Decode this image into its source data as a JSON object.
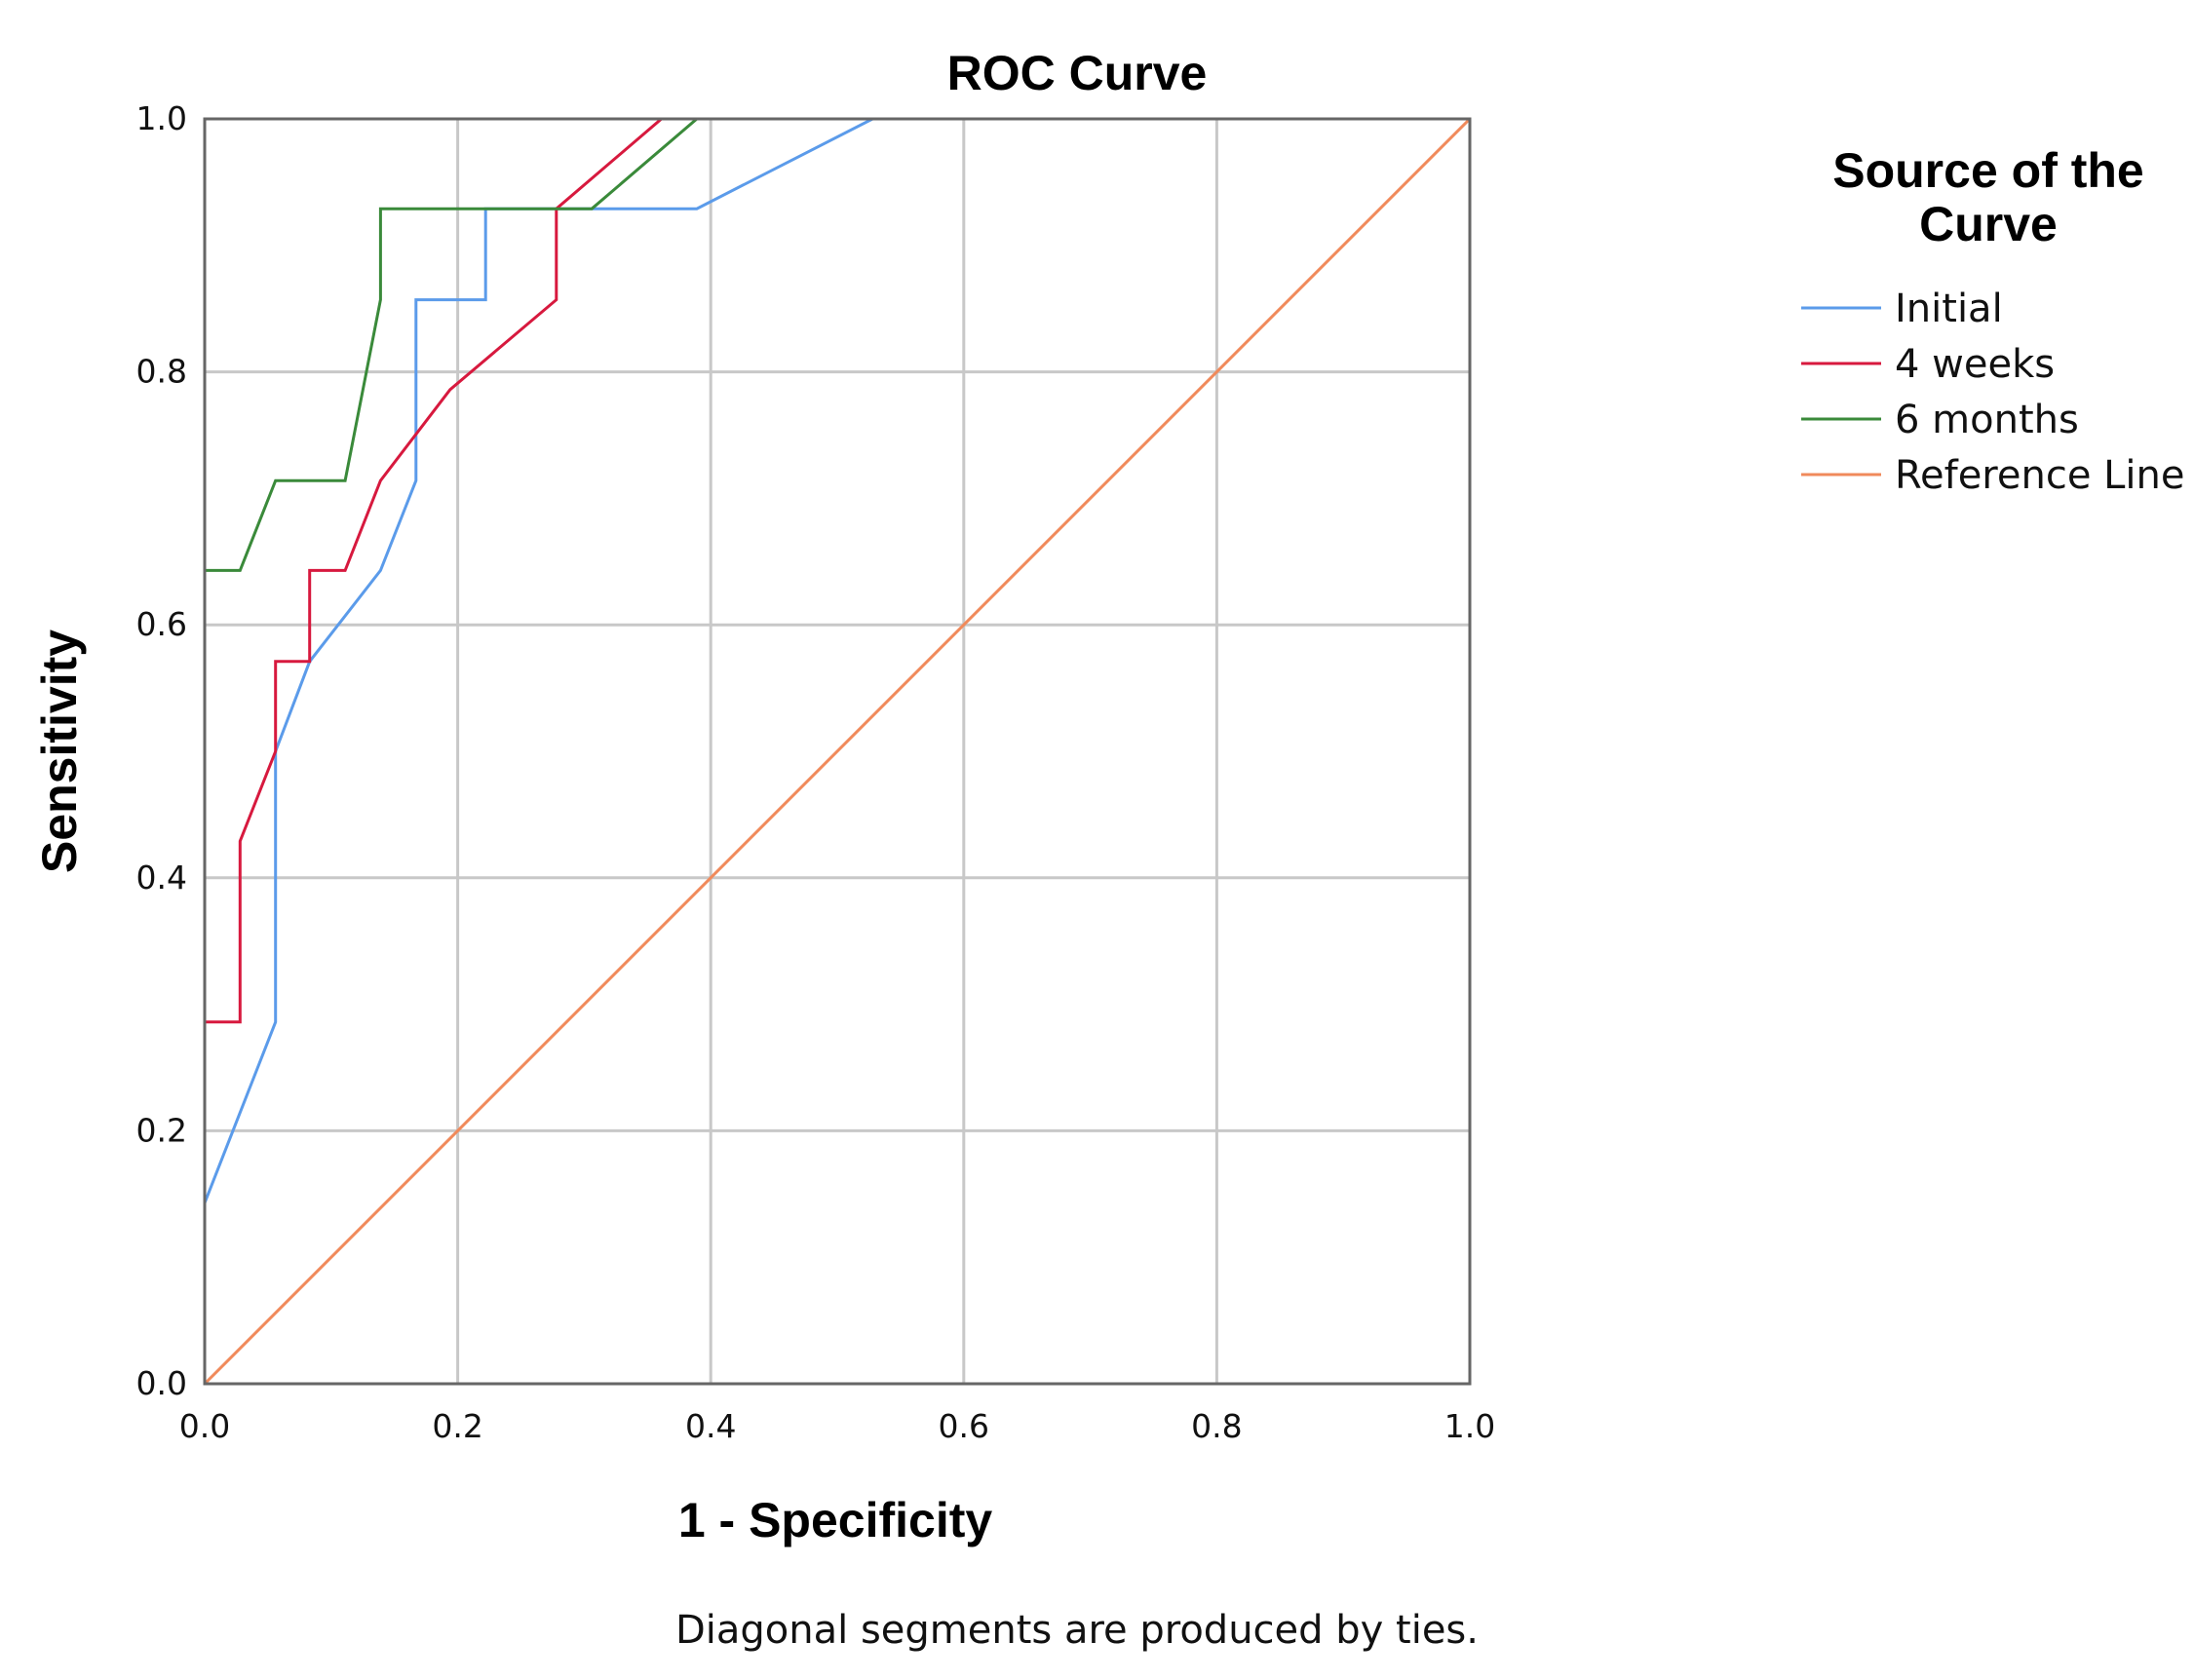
{
  "chart_data": {
    "type": "line",
    "title": "ROC Curve",
    "xlabel": "1 - Specificity",
    "ylabel": "Sensitivity",
    "xlim": [
      0,
      1
    ],
    "ylim": [
      0,
      1
    ],
    "x_ticks": [
      "0.0",
      "0.2",
      "0.4",
      "0.6",
      "0.8",
      "1.0"
    ],
    "y_ticks": [
      "0.0",
      "0.2",
      "0.4",
      "0.6",
      "0.8",
      "1.0"
    ],
    "grid": true,
    "legend": {
      "title": "Source of the Curve",
      "title_lines": [
        "Source of the",
        "Curve"
      ],
      "placement": "right"
    },
    "footnote": "Diagonal segments are produced by ties.",
    "series": [
      {
        "name": "Initial",
        "color": "#5b9bea",
        "points": [
          [
            0,
            0
          ],
          [
            0,
            0.143
          ],
          [
            0.056,
            0.286
          ],
          [
            0.056,
            0.5
          ],
          [
            0.083,
            0.571
          ],
          [
            0.139,
            0.643
          ],
          [
            0.167,
            0.714
          ],
          [
            0.167,
            0.857
          ],
          [
            0.222,
            0.857
          ],
          [
            0.222,
            0.929
          ],
          [
            0.389,
            0.929
          ],
          [
            0.528,
            1.0
          ],
          [
            1.0,
            1.0
          ]
        ]
      },
      {
        "name": "4 weeks",
        "color": "#d7193e",
        "points": [
          [
            0,
            0
          ],
          [
            0,
            0.286
          ],
          [
            0.028,
            0.286
          ],
          [
            0.028,
            0.429
          ],
          [
            0.056,
            0.5
          ],
          [
            0.056,
            0.571
          ],
          [
            0.083,
            0.571
          ],
          [
            0.083,
            0.643
          ],
          [
            0.111,
            0.643
          ],
          [
            0.139,
            0.714
          ],
          [
            0.194,
            0.786
          ],
          [
            0.278,
            0.857
          ],
          [
            0.278,
            0.929
          ],
          [
            0.361,
            1.0
          ],
          [
            1.0,
            1.0
          ]
        ]
      },
      {
        "name": "6 months",
        "color": "#3a8a3a",
        "points": [
          [
            0,
            0
          ],
          [
            0,
            0.643
          ],
          [
            0.028,
            0.643
          ],
          [
            0.056,
            0.714
          ],
          [
            0.111,
            0.714
          ],
          [
            0.139,
            0.857
          ],
          [
            0.139,
            0.929
          ],
          [
            0.306,
            0.929
          ],
          [
            0.389,
            1.0
          ],
          [
            1.0,
            1.0
          ]
        ]
      },
      {
        "name": "Reference Line",
        "color": "#f08a5b",
        "points": [
          [
            0,
            0
          ],
          [
            1,
            1
          ]
        ]
      }
    ]
  }
}
